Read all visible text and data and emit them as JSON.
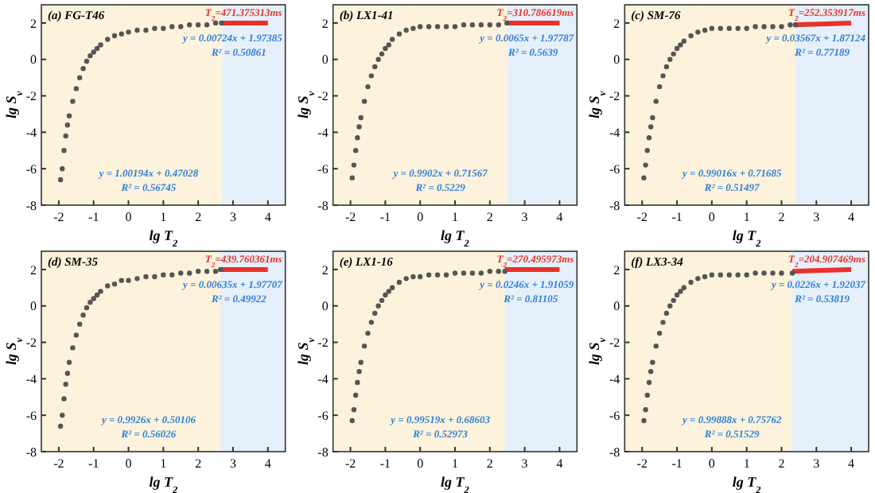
{
  "chart_data": [
    {
      "type": "scatter",
      "title": "(a) FG-T46",
      "xlabel": "lg T$_{2}$",
      "ylabel": "lg S$_{v}$",
      "xlim": [
        -2.5,
        4.5
      ],
      "ylim": [
        -8,
        3
      ],
      "xticks": [
        -2,
        -1,
        0,
        1,
        2,
        3,
        4
      ],
      "yticks": [
        -8,
        -6,
        -4,
        -2,
        0,
        2
      ],
      "grid": false,
      "bands": [
        {
          "axis": "x",
          "from": -2.5,
          "to": 2.67,
          "color": "#fdf3dc"
        },
        {
          "axis": "x",
          "from": 2.67,
          "to": 4.5,
          "color": "#e6f0fb"
        }
      ],
      "series": [
        {
          "marker": "circle",
          "color": "#555555",
          "x": [
            -1.95,
            -1.9,
            -1.85,
            -1.8,
            -1.75,
            -1.7,
            -1.6,
            -1.5,
            -1.4,
            -1.3,
            -1.2,
            -1.1,
            -1.0,
            -0.9,
            -0.8,
            -0.6,
            -0.4,
            -0.2,
            0,
            0.25,
            0.5,
            0.75,
            1,
            1.25,
            1.5,
            1.75,
            2,
            2.25,
            2.5,
            2.67
          ],
          "values": [
            -6.6,
            -6.0,
            -5.0,
            -4.2,
            -3.6,
            -3.1,
            -2.3,
            -1.6,
            -1.0,
            -0.5,
            -0.1,
            0.2,
            0.4,
            0.6,
            0.8,
            1.1,
            1.3,
            1.4,
            1.5,
            1.6,
            1.6,
            1.7,
            1.7,
            1.8,
            1.8,
            1.9,
            1.9,
            1.9,
            2.0,
            2.0
          ]
        },
        {
          "type": "line",
          "marker": "none",
          "color": "#e8322b",
          "x": [
            2.67,
            4
          ],
          "values": [
            2.0,
            2.0
          ]
        }
      ],
      "annotations": [
        "T$_{2}$=471.375313ms",
        "y = 0.00724x + 1.97385",
        "R² = 0.50861",
        "y = 1.00194x + 0.47028",
        "R² = 0.56745"
      ]
    },
    {
      "type": "scatter",
      "title": "(b) LX1-41",
      "xlabel": "lg T$_{2}$",
      "ylabel": "lg S$_{v}$",
      "xlim": [
        -2.5,
        4.5
      ],
      "ylim": [
        -8,
        3
      ],
      "xticks": [
        -2,
        -1,
        0,
        1,
        2,
        3,
        4
      ],
      "yticks": [
        -8,
        -6,
        -4,
        -2,
        0,
        2
      ],
      "grid": false,
      "bands": [
        {
          "axis": "x",
          "from": -2.5,
          "to": 2.49,
          "color": "#fdf3dc"
        },
        {
          "axis": "x",
          "from": 2.49,
          "to": 4.5,
          "color": "#e6f0fb"
        }
      ],
      "series": [
        {
          "marker": "circle",
          "color": "#555555",
          "x": [
            -1.95,
            -1.9,
            -1.85,
            -1.8,
            -1.75,
            -1.7,
            -1.6,
            -1.5,
            -1.4,
            -1.3,
            -1.2,
            -1.1,
            -1.0,
            -0.9,
            -0.8,
            -0.6,
            -0.4,
            -0.2,
            0,
            0.25,
            0.5,
            0.75,
            1,
            1.25,
            1.5,
            1.75,
            2,
            2.25,
            2.49
          ],
          "values": [
            -6.5,
            -5.8,
            -5.0,
            -4.3,
            -3.7,
            -3.2,
            -2.3,
            -1.5,
            -0.9,
            -0.4,
            0,
            0.3,
            0.6,
            0.8,
            1.1,
            1.4,
            1.6,
            1.7,
            1.8,
            1.8,
            1.8,
            1.8,
            1.8,
            1.9,
            1.9,
            1.9,
            1.9,
            1.9,
            2.0
          ]
        },
        {
          "type": "line",
          "marker": "none",
          "color": "#e8322b",
          "x": [
            2.49,
            4
          ],
          "values": [
            2.0,
            2.0
          ]
        }
      ],
      "annotations": [
        "T$_{2}$=310.786619ms",
        "y = 0.0065x + 1.97787",
        "R² = 0.5639",
        "y = 0.9902x + 0.71567",
        "R² = 0.5229"
      ]
    },
    {
      "type": "scatter",
      "title": "(c) SM-76",
      "xlabel": "lg T$_{2}$",
      "ylabel": "lg S$_{v}$",
      "xlim": [
        -2.5,
        4.5
      ],
      "ylim": [
        -8,
        3
      ],
      "xticks": [
        -2,
        -1,
        0,
        1,
        2,
        3,
        4
      ],
      "yticks": [
        -8,
        -6,
        -4,
        -2,
        0,
        2
      ],
      "grid": false,
      "bands": [
        {
          "axis": "x",
          "from": -2.5,
          "to": 2.4,
          "color": "#fdf3dc"
        },
        {
          "axis": "x",
          "from": 2.4,
          "to": 4.5,
          "color": "#e6f0fb"
        }
      ],
      "series": [
        {
          "marker": "circle",
          "color": "#555555",
          "x": [
            -1.95,
            -1.9,
            -1.85,
            -1.8,
            -1.75,
            -1.7,
            -1.6,
            -1.5,
            -1.4,
            -1.3,
            -1.2,
            -1.1,
            -1.0,
            -0.9,
            -0.8,
            -0.6,
            -0.4,
            -0.2,
            0,
            0.25,
            0.5,
            0.75,
            1,
            1.25,
            1.5,
            1.75,
            2,
            2.25,
            2.4
          ],
          "values": [
            -6.5,
            -5.8,
            -5.0,
            -4.3,
            -3.7,
            -3.2,
            -2.3,
            -1.5,
            -0.9,
            -0.4,
            0,
            0.3,
            0.6,
            0.8,
            1.0,
            1.3,
            1.5,
            1.6,
            1.7,
            1.7,
            1.7,
            1.7,
            1.7,
            1.8,
            1.8,
            1.8,
            1.8,
            1.9,
            1.9
          ]
        },
        {
          "type": "line",
          "marker": "none",
          "color": "#e8322b",
          "x": [
            2.4,
            4
          ],
          "values": [
            1.9,
            2.0
          ]
        }
      ],
      "annotations": [
        "T$_{2}$=252.353917ms",
        "y = 0.03567x + 1.87124",
        "R² = 0.77189",
        "y = 0.99016x + 0.71685",
        "R² = 0.51497"
      ]
    },
    {
      "type": "scatter",
      "title": "(d) SM-35",
      "xlabel": "lg T$_{2}$",
      "ylabel": "lg S$_{v}$",
      "xlim": [
        -2.5,
        4.5
      ],
      "ylim": [
        -8,
        3
      ],
      "xticks": [
        -2,
        -1,
        0,
        1,
        2,
        3,
        4
      ],
      "yticks": [
        -8,
        -6,
        -4,
        -2,
        0,
        2
      ],
      "grid": false,
      "bands": [
        {
          "axis": "x",
          "from": -2.5,
          "to": 2.64,
          "color": "#fdf3dc"
        },
        {
          "axis": "x",
          "from": 2.64,
          "to": 4.5,
          "color": "#e6f0fb"
        }
      ],
      "series": [
        {
          "marker": "circle",
          "color": "#555555",
          "x": [
            -1.95,
            -1.9,
            -1.85,
            -1.8,
            -1.75,
            -1.7,
            -1.6,
            -1.5,
            -1.4,
            -1.3,
            -1.2,
            -1.1,
            -1.0,
            -0.9,
            -0.8,
            -0.6,
            -0.4,
            -0.2,
            0,
            0.25,
            0.5,
            0.75,
            1,
            1.25,
            1.5,
            1.75,
            2,
            2.25,
            2.5,
            2.64
          ],
          "values": [
            -6.6,
            -6.0,
            -5.1,
            -4.3,
            -3.7,
            -3.1,
            -2.3,
            -1.6,
            -1.0,
            -0.5,
            -0.1,
            0.2,
            0.4,
            0.6,
            0.8,
            1.1,
            1.2,
            1.4,
            1.4,
            1.5,
            1.6,
            1.6,
            1.7,
            1.7,
            1.8,
            1.8,
            1.9,
            1.9,
            1.9,
            2.0
          ]
        },
        {
          "type": "line",
          "marker": "none",
          "color": "#e8322b",
          "x": [
            2.64,
            4
          ],
          "values": [
            2.0,
            2.0
          ]
        }
      ],
      "annotations": [
        "T$_{2}$=439.760361ms",
        "y = 0.00635x + 1.97707",
        "R² = 0.49922",
        "y = 0.9926x + 0.50106",
        "R² = 0.56026"
      ]
    },
    {
      "type": "scatter",
      "title": "(e) LX1-16",
      "xlabel": "lg T$_{2}$",
      "ylabel": "lg S$_{v}$",
      "xlim": [
        -2.5,
        4.5
      ],
      "ylim": [
        -8,
        3
      ],
      "xticks": [
        -2,
        -1,
        0,
        1,
        2,
        3,
        4
      ],
      "yticks": [
        -8,
        -6,
        -4,
        -2,
        0,
        2
      ],
      "grid": false,
      "bands": [
        {
          "axis": "x",
          "from": -2.5,
          "to": 2.43,
          "color": "#fdf3dc"
        },
        {
          "axis": "x",
          "from": 2.43,
          "to": 4.5,
          "color": "#e6f0fb"
        }
      ],
      "series": [
        {
          "marker": "circle",
          "color": "#555555",
          "x": [
            -1.95,
            -1.9,
            -1.85,
            -1.8,
            -1.75,
            -1.7,
            -1.6,
            -1.5,
            -1.4,
            -1.3,
            -1.2,
            -1.1,
            -1.0,
            -0.9,
            -0.8,
            -0.6,
            -0.4,
            -0.2,
            0,
            0.25,
            0.5,
            0.75,
            1,
            1.25,
            1.5,
            1.75,
            2,
            2.25,
            2.43
          ],
          "values": [
            -6.3,
            -5.7,
            -4.9,
            -4.2,
            -3.6,
            -3.1,
            -2.2,
            -1.5,
            -0.9,
            -0.4,
            0,
            0.3,
            0.6,
            0.8,
            1.0,
            1.3,
            1.5,
            1.6,
            1.6,
            1.7,
            1.7,
            1.7,
            1.8,
            1.8,
            1.8,
            1.8,
            1.9,
            1.9,
            1.9
          ]
        },
        {
          "type": "line",
          "marker": "none",
          "color": "#e8322b",
          "x": [
            2.43,
            4
          ],
          "values": [
            2.0,
            2.0
          ]
        }
      ],
      "annotations": [
        "T$_{2}$=270.495973ms",
        "y = 0.0246x + 1.91059",
        "R² = 0.81105",
        "y = 0.99519x + 0.68603",
        "R² = 0.52973"
      ]
    },
    {
      "type": "scatter",
      "title": "(f) LX3-34",
      "xlabel": "lg T$_{2}$",
      "ylabel": "lg S$_{v}$",
      "xlim": [
        -2.5,
        4.5
      ],
      "ylim": [
        -8,
        3
      ],
      "xticks": [
        -2,
        -1,
        0,
        1,
        2,
        3,
        4
      ],
      "yticks": [
        -8,
        -6,
        -4,
        -2,
        0,
        2
      ],
      "grid": false,
      "bands": [
        {
          "axis": "x",
          "from": -2.5,
          "to": 2.31,
          "color": "#fdf3dc"
        },
        {
          "axis": "x",
          "from": 2.31,
          "to": 4.5,
          "color": "#e6f0fb"
        }
      ],
      "series": [
        {
          "marker": "circle",
          "color": "#555555",
          "x": [
            -1.95,
            -1.9,
            -1.85,
            -1.8,
            -1.75,
            -1.7,
            -1.6,
            -1.5,
            -1.4,
            -1.3,
            -1.2,
            -1.1,
            -1.0,
            -0.9,
            -0.8,
            -0.6,
            -0.4,
            -0.2,
            0,
            0.25,
            0.5,
            0.75,
            1,
            1.25,
            1.5,
            1.75,
            2,
            2.31
          ],
          "values": [
            -6.3,
            -5.7,
            -4.9,
            -4.2,
            -3.6,
            -3.1,
            -2.2,
            -1.5,
            -0.9,
            -0.4,
            0,
            0.3,
            0.6,
            0.8,
            1.0,
            1.3,
            1.5,
            1.6,
            1.7,
            1.7,
            1.7,
            1.7,
            1.7,
            1.8,
            1.8,
            1.8,
            1.8,
            1.8
          ]
        },
        {
          "type": "line",
          "marker": "none",
          "color": "#e8322b",
          "x": [
            2.31,
            4
          ],
          "values": [
            1.9,
            2.0
          ]
        }
      ],
      "annotations": [
        "T$_{2}$=204.907469ms",
        "y = 0.0226x + 1.92037",
        "R² = 0.53819",
        "y = 0.99888x + 0.75762",
        "R² = 0.51529"
      ]
    }
  ]
}
